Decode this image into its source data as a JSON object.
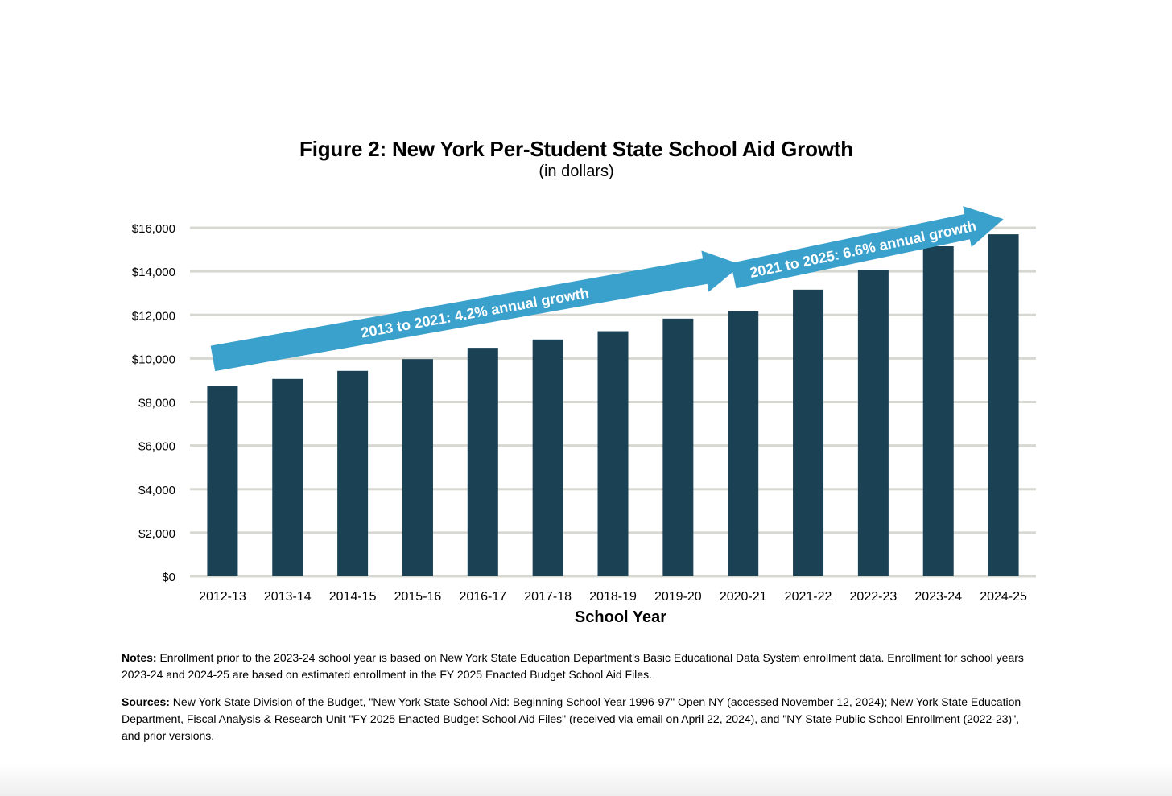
{
  "chart_data": {
    "type": "bar",
    "title": "Figure 2: New York Per-Student State School Aid Growth",
    "subtitle": "(in dollars)",
    "xlabel": "School Year",
    "ylabel": "",
    "ylim": [
      0,
      16000
    ],
    "y_ticks": [
      0,
      2000,
      4000,
      6000,
      8000,
      10000,
      12000,
      14000,
      16000
    ],
    "y_tick_labels": [
      "$0",
      "$2,000",
      "$4,000",
      "$6,000",
      "$8,000",
      "$10,000",
      "$12,000",
      "$14,000",
      "$16,000"
    ],
    "grid": true,
    "categories": [
      "2012-13",
      "2013-14",
      "2014-15",
      "2015-16",
      "2016-17",
      "2017-18",
      "2018-19",
      "2019-20",
      "2020-21",
      "2021-22",
      "2022-23",
      "2023-24",
      "2024-25"
    ],
    "values": [
      8720,
      9060,
      9430,
      9970,
      10490,
      10870,
      11250,
      11830,
      12170,
      13160,
      14050,
      15150,
      15700
    ],
    "bar_color": "#1a4154",
    "annotations": [
      {
        "text": "2013 to 2021: 4.2% annual growth",
        "from_category": "2012-13",
        "to_category": "2020-21",
        "from_value": 10000,
        "to_value": 14300,
        "color": "#3aa0cc"
      },
      {
        "text": "2021 to 2025: 6.6% annual growth",
        "from_category": "2020-21",
        "to_category": "2024-25",
        "from_value": 13800,
        "to_value": 16400,
        "color": "#3aa0cc"
      }
    ]
  },
  "notes": {
    "notes_label": "Notes:",
    "notes_text": " Enrollment prior to the 2023-24 school year is based on New York State Education Department's Basic Educational Data System enrollment data. Enrollment for school years 2023-24 and 2024-25 are based on estimated enrollment in the FY 2025 Enacted Budget School Aid Files.",
    "sources_label": "Sources:",
    "sources_text": " New York State Division of the Budget, \"New York State School Aid: Beginning School Year 1996-97\" Open NY (accessed November 12, 2024); New York State Education Department, Fiscal Analysis & Research Unit \"FY 2025 Enacted Budget School Aid Files\" (received via email on April 22, 2024), and \"NY State Public School Enrollment (2022-23)\", and prior versions."
  }
}
